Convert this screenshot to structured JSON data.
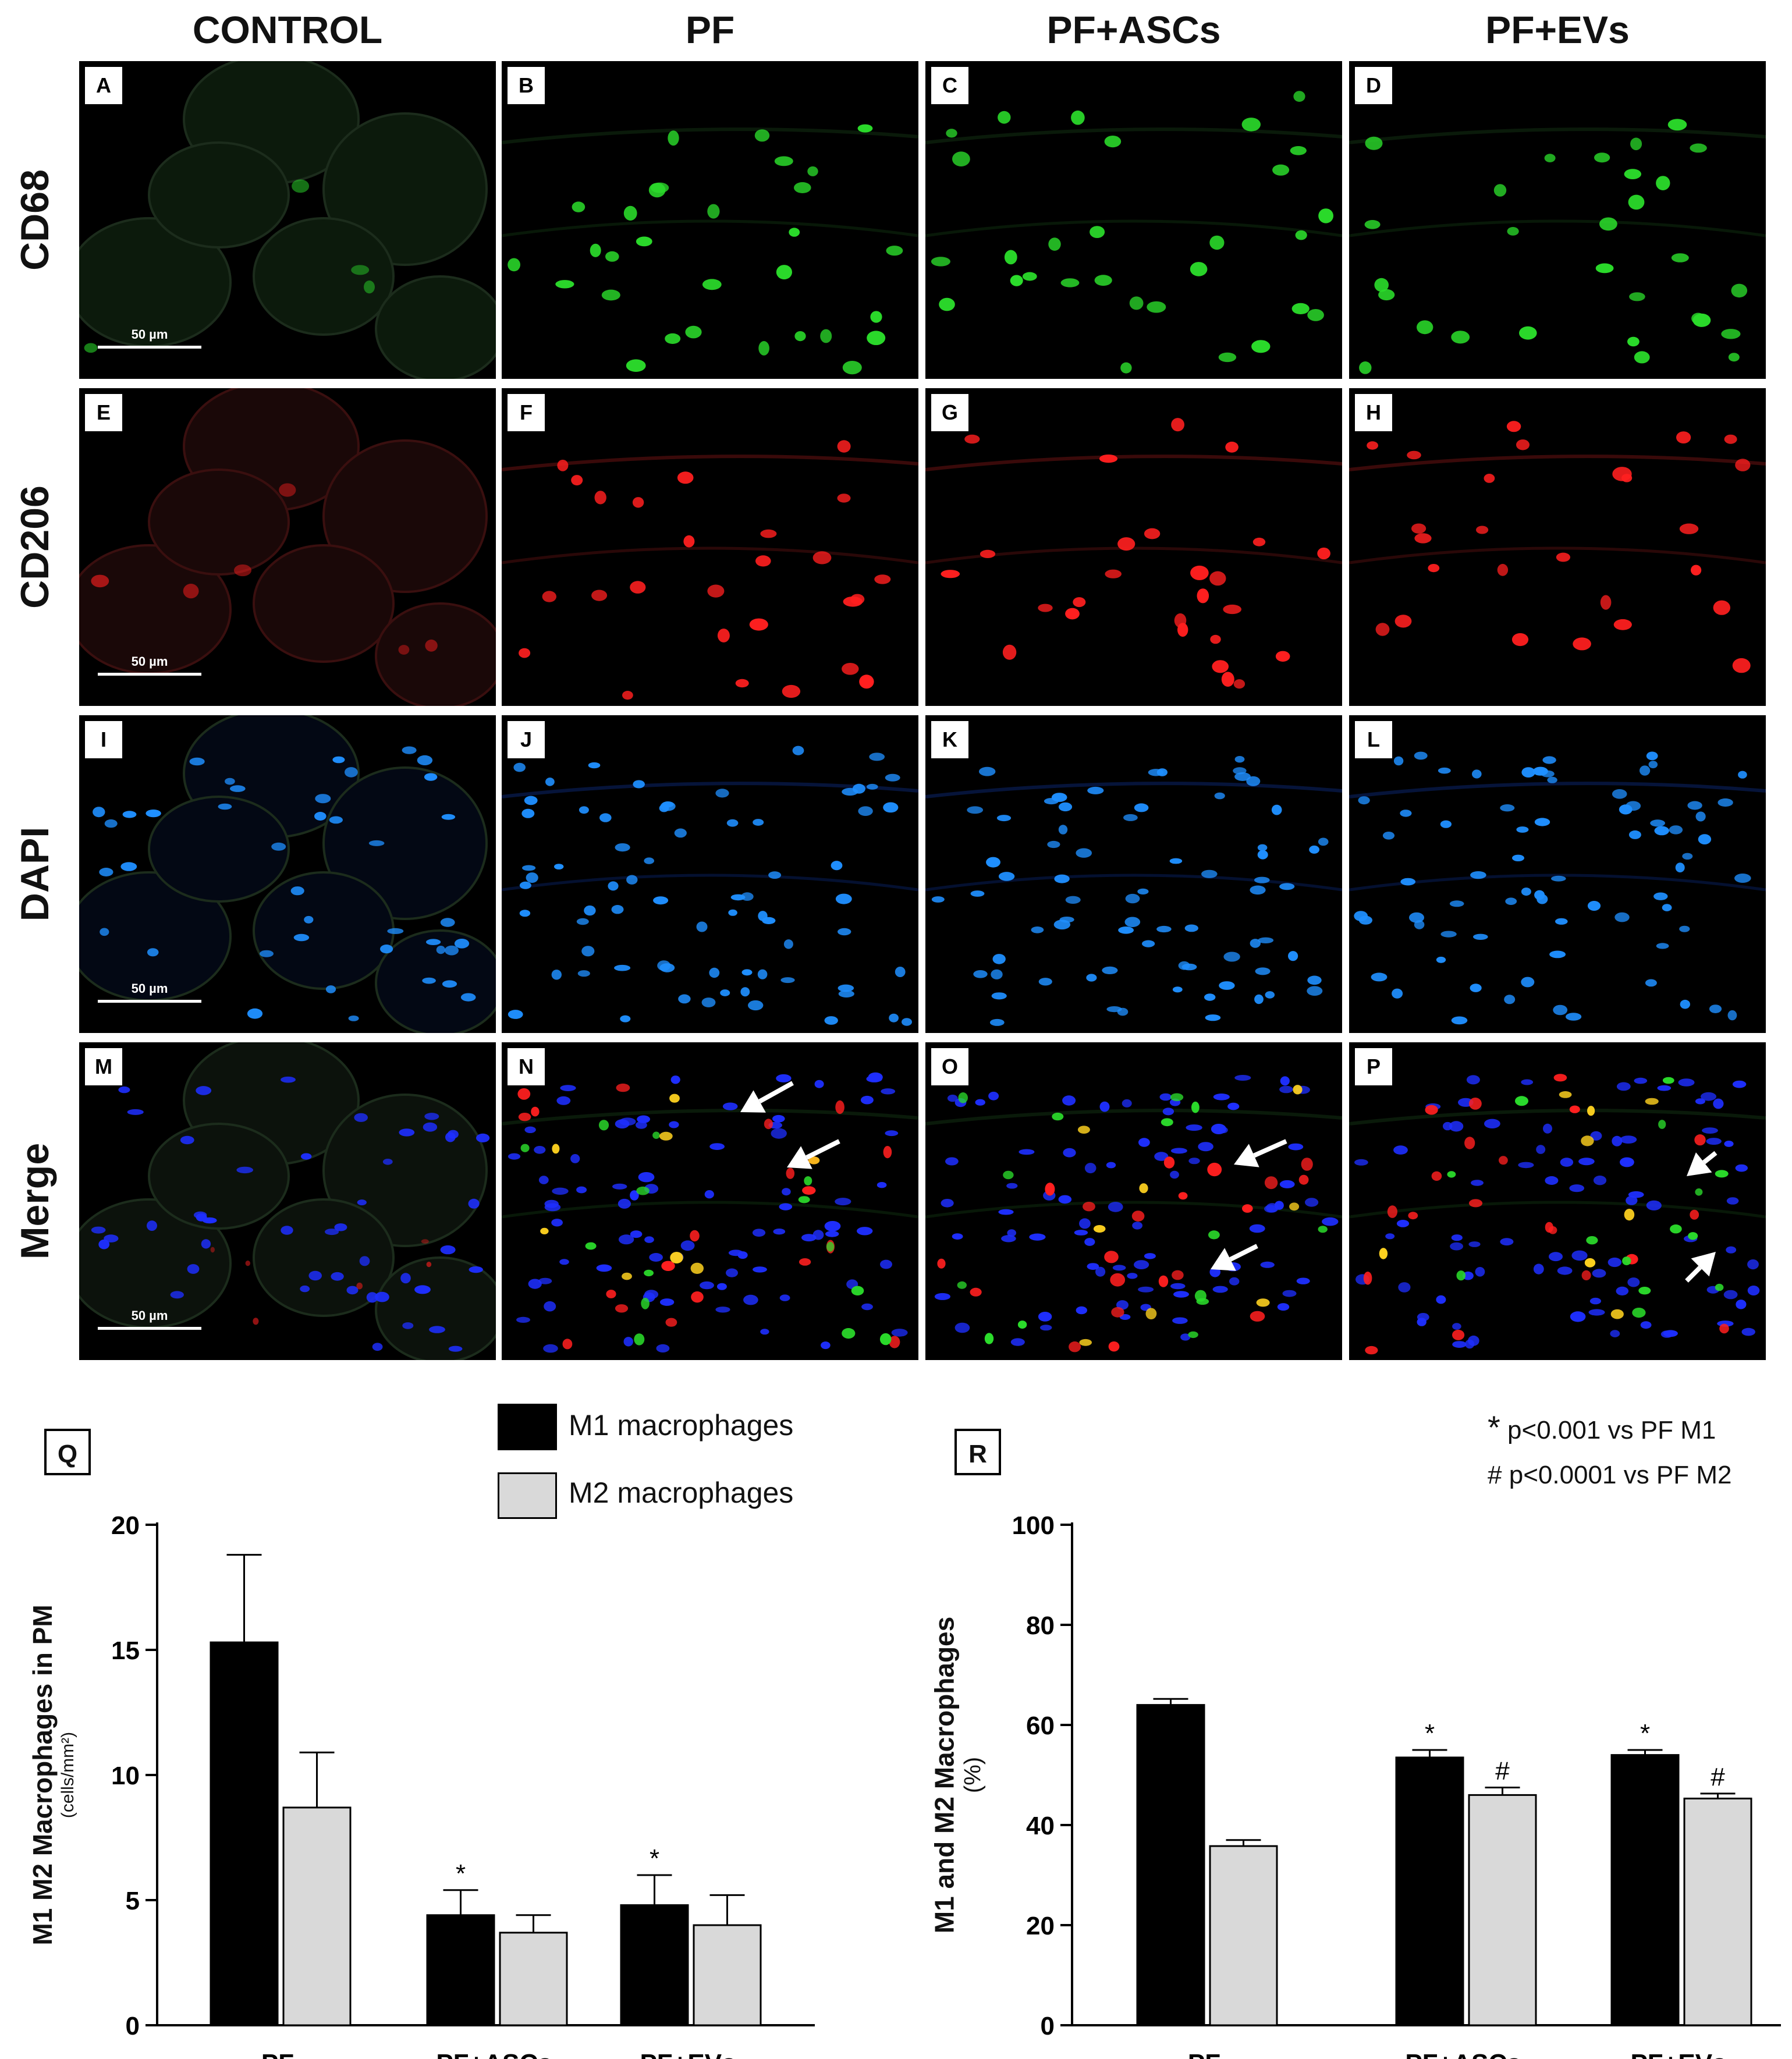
{
  "columns": [
    "CONTROL",
    "PF",
    "PF+ASCs",
    "PF+EVs"
  ],
  "rows": [
    "CD68",
    "CD206",
    "DAPI",
    "Merge"
  ],
  "panel_letters": [
    "A",
    "B",
    "C",
    "D",
    "E",
    "F",
    "G",
    "H",
    "I",
    "J",
    "K",
    "L",
    "M",
    "N",
    "O",
    "P"
  ],
  "scale_bar": "50 µm",
  "colors": {
    "cd68": "#2bdc2b",
    "cd206": "#ff1f1f",
    "dapi": "#1f8fff",
    "merge_blue": "#1e2fff"
  },
  "legend": {
    "m1": "M1 macrophages",
    "m2": "M2 macrophages",
    "m1_color": "#000000",
    "m2_color": "#d9d9d9"
  },
  "significance": {
    "star": "* p<0.001 vs PF M1",
    "hash": "# p<0.0001 vs PF M2",
    "star_symbol": "*",
    "star_text": "p<0.001 vs PF M1",
    "hash_symbol": "#",
    "hash_text": "p<0.0001 vs PF M2"
  },
  "chart_data": [
    {
      "panel": "Q",
      "type": "bar",
      "ylabel": "M1 M2 Macrophages in PM",
      "ylabel_unit": "(cells/mm²)",
      "categories": [
        "PF",
        "PF+ASCs",
        "PF+EVs"
      ],
      "ylim": [
        0,
        20
      ],
      "yticks": [
        0,
        5,
        10,
        15,
        20
      ],
      "series": [
        {
          "name": "M1 macrophages",
          "color": "#000000",
          "values": [
            15.3,
            4.4,
            4.8
          ],
          "errors": [
            3.5,
            1.0,
            1.2
          ],
          "marks": [
            "",
            "*",
            "*"
          ]
        },
        {
          "name": "M2 macrophages",
          "color": "#d9d9d9",
          "values": [
            8.7,
            3.7,
            4.0
          ],
          "errors": [
            2.2,
            0.7,
            1.2
          ],
          "marks": [
            "",
            "",
            ""
          ]
        }
      ]
    },
    {
      "panel": "R",
      "type": "bar",
      "ylabel": "M1 and M2 Macrophages",
      "ylabel_unit": "(%)",
      "categories": [
        "PF",
        "PF+ASCs",
        "PF+EVs"
      ],
      "ylim": [
        0,
        100
      ],
      "yticks": [
        0,
        20,
        40,
        60,
        80,
        100
      ],
      "series": [
        {
          "name": "M1 macrophages",
          "color": "#000000",
          "values": [
            64.0,
            53.5,
            54.0
          ],
          "errors": [
            1.2,
            1.5,
            1.0
          ],
          "marks": [
            "",
            "*",
            "*"
          ]
        },
        {
          "name": "M2 macrophages",
          "color": "#d9d9d9",
          "values": [
            35.8,
            46.0,
            45.3
          ],
          "errors": [
            1.2,
            1.5,
            1.0
          ],
          "marks": [
            "",
            "#",
            "#"
          ]
        }
      ]
    }
  ]
}
